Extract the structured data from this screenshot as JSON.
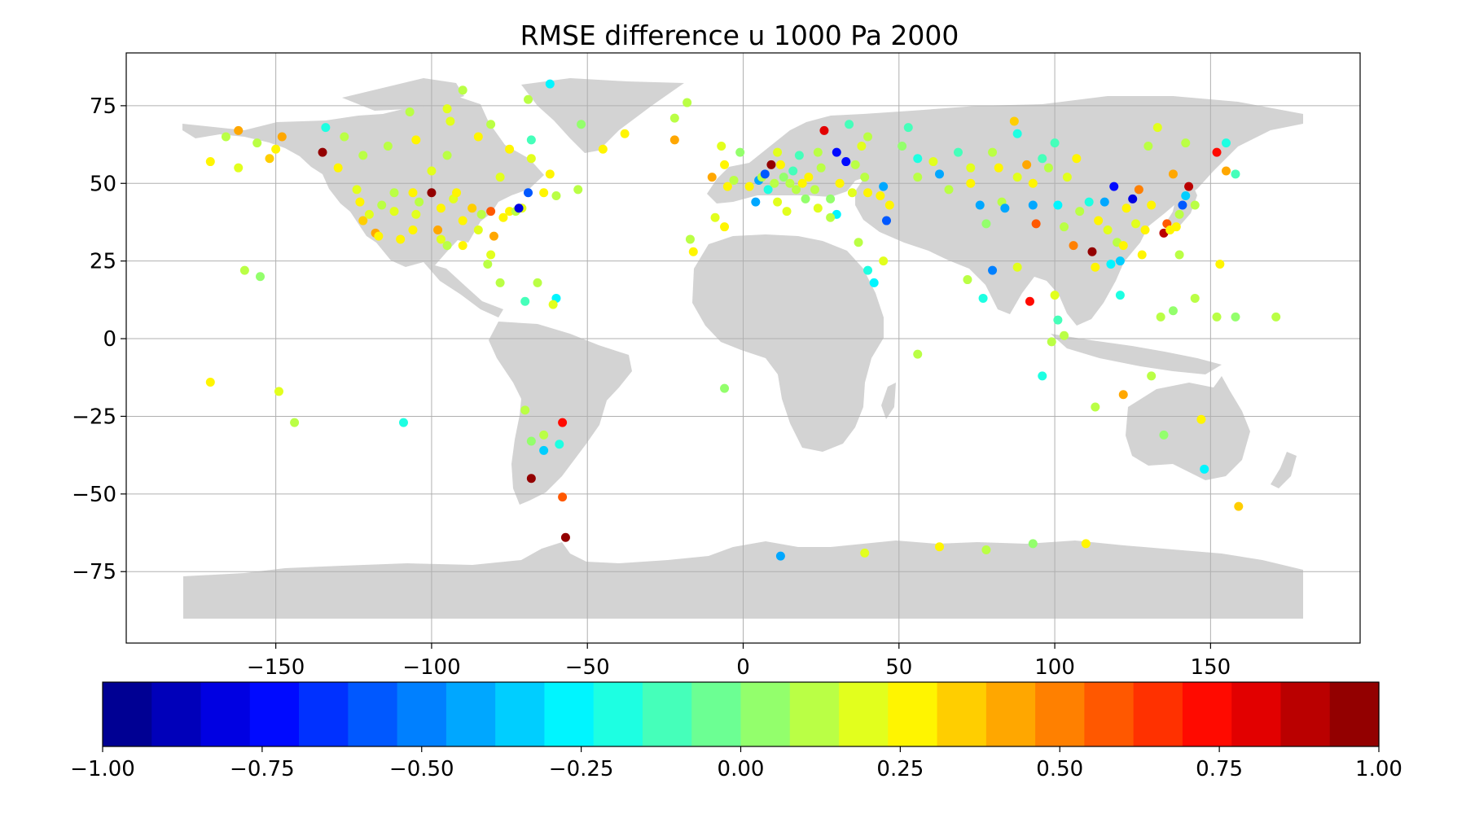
{
  "chart_data": {
    "type": "scatter",
    "title": "RMSE difference u  1000 Pa 2000",
    "xlabel": "",
    "ylabel": "",
    "xlim": [
      -198,
      198
    ],
    "ylim": [
      -98,
      92
    ],
    "xticks": [
      -150,
      -100,
      -50,
      0,
      50,
      100,
      150
    ],
    "yticks": [
      75,
      50,
      25,
      0,
      -25,
      -50,
      -75
    ],
    "xtick_labels": [
      "−150",
      "−100",
      "−50",
      "0",
      "50",
      "100",
      "150"
    ],
    "ytick_labels": [
      "75",
      "50",
      "25",
      "0",
      "−25",
      "−50",
      "−75"
    ],
    "grid": true,
    "background_map": "world land masses (light gray)",
    "colorbar": {
      "orientation": "horizontal",
      "placement": "bottom",
      "colormap": "jet",
      "range": [
        -1.0,
        1.0
      ],
      "ticks": [
        -1.0,
        -0.75,
        -0.5,
        -0.25,
        0.0,
        0.25,
        0.5,
        0.75,
        1.0
      ],
      "tick_labels": [
        "−1.00",
        "−0.75",
        "−0.50",
        "−0.25",
        "0.00",
        "0.25",
        "0.50",
        "0.75",
        "1.00"
      ],
      "bins": 26
    },
    "points": [
      {
        "x": -171,
        "y": 57,
        "v": 0.25
      },
      {
        "x": -166,
        "y": 65,
        "v": 0.1
      },
      {
        "x": -162,
        "y": 67,
        "v": 0.4
      },
      {
        "x": -162,
        "y": 55,
        "v": 0.2
      },
      {
        "x": -156,
        "y": 63,
        "v": 0.15
      },
      {
        "x": -152,
        "y": 58,
        "v": 0.35
      },
      {
        "x": -150,
        "y": 61,
        "v": 0.3
      },
      {
        "x": -148,
        "y": 65,
        "v": 0.45
      },
      {
        "x": -135,
        "y": 60,
        "v": 0.95
      },
      {
        "x": -134,
        "y": 68,
        "v": -0.2
      },
      {
        "x": -130,
        "y": 55,
        "v": 0.3
      },
      {
        "x": -128,
        "y": 65,
        "v": 0.1
      },
      {
        "x": -122,
        "y": 59,
        "v": 0.15
      },
      {
        "x": -124,
        "y": 48,
        "v": 0.2
      },
      {
        "x": -123,
        "y": 44,
        "v": 0.3
      },
      {
        "x": -122,
        "y": 38,
        "v": 0.35
      },
      {
        "x": -118,
        "y": 34,
        "v": 0.4
      },
      {
        "x": -117,
        "y": 33,
        "v": 0.25
      },
      {
        "x": -120,
        "y": 40,
        "v": 0.2
      },
      {
        "x": -116,
        "y": 43,
        "v": 0.15
      },
      {
        "x": -112,
        "y": 41,
        "v": 0.2
      },
      {
        "x": -110,
        "y": 32,
        "v": 0.3
      },
      {
        "x": -106,
        "y": 35,
        "v": 0.25
      },
      {
        "x": -105,
        "y": 40,
        "v": 0.2
      },
      {
        "x": -104,
        "y": 44,
        "v": 0.15
      },
      {
        "x": -112,
        "y": 47,
        "v": 0.1
      },
      {
        "x": -106,
        "y": 47,
        "v": 0.25
      },
      {
        "x": -100,
        "y": 47,
        "v": 0.95
      },
      {
        "x": -97,
        "y": 42,
        "v": 0.3
      },
      {
        "x": -98,
        "y": 35,
        "v": 0.45
      },
      {
        "x": -97,
        "y": 32,
        "v": 0.2
      },
      {
        "x": -95,
        "y": 30,
        "v": 0.1
      },
      {
        "x": -93,
        "y": 45,
        "v": 0.2
      },
      {
        "x": -90,
        "y": 38,
        "v": 0.25
      },
      {
        "x": -90,
        "y": 30,
        "v": 0.3
      },
      {
        "x": -87,
        "y": 42,
        "v": 0.35
      },
      {
        "x": -85,
        "y": 35,
        "v": 0.2
      },
      {
        "x": -84,
        "y": 40,
        "v": 0.15
      },
      {
        "x": -81,
        "y": 41,
        "v": 0.55
      },
      {
        "x": -80,
        "y": 33,
        "v": 0.45
      },
      {
        "x": -81,
        "y": 27,
        "v": 0.2
      },
      {
        "x": -82,
        "y": 24,
        "v": 0.15
      },
      {
        "x": -77,
        "y": 39,
        "v": 0.25
      },
      {
        "x": -75,
        "y": 41,
        "v": 0.3
      },
      {
        "x": -73,
        "y": 41,
        "v": 0.1
      },
      {
        "x": -71,
        "y": 42,
        "v": 0.2
      },
      {
        "x": -69,
        "y": 47,
        "v": -0.55
      },
      {
        "x": -72,
        "y": 42,
        "v": -0.8
      },
      {
        "x": -64,
        "y": 47,
        "v": 0.25
      },
      {
        "x": -60,
        "y": 46,
        "v": 0.15
      },
      {
        "x": -53,
        "y": 48,
        "v": 0.1
      },
      {
        "x": -92,
        "y": 47,
        "v": 0.25
      },
      {
        "x": -100,
        "y": 54,
        "v": 0.2
      },
      {
        "x": -95,
        "y": 59,
        "v": 0.1
      },
      {
        "x": -94,
        "y": 70,
        "v": 0.2
      },
      {
        "x": -85,
        "y": 65,
        "v": 0.3
      },
      {
        "x": -81,
        "y": 69,
        "v": 0.15
      },
      {
        "x": -75,
        "y": 61,
        "v": 0.25
      },
      {
        "x": -78,
        "y": 52,
        "v": 0.2
      },
      {
        "x": -68,
        "y": 64,
        "v": -0.15
      },
      {
        "x": -68,
        "y": 58,
        "v": 0.2
      },
      {
        "x": -62,
        "y": 53,
        "v": 0.25
      },
      {
        "x": -114,
        "y": 62,
        "v": 0.15
      },
      {
        "x": -105,
        "y": 64,
        "v": 0.25
      },
      {
        "x": -107,
        "y": 73,
        "v": 0.1
      },
      {
        "x": -95,
        "y": 74,
        "v": 0.2
      },
      {
        "x": -90,
        "y": 80,
        "v": 0.15
      },
      {
        "x": -62,
        "y": 82,
        "v": -0.3
      },
      {
        "x": -69,
        "y": 77,
        "v": 0.1
      },
      {
        "x": -52,
        "y": 69,
        "v": 0.05
      },
      {
        "x": -45,
        "y": 61,
        "v": 0.25
      },
      {
        "x": -38,
        "y": 66,
        "v": 0.3
      },
      {
        "x": -22,
        "y": 64,
        "v": 0.4
      },
      {
        "x": -22,
        "y": 71,
        "v": 0.1
      },
      {
        "x": -18,
        "y": 76,
        "v": 0.15
      },
      {
        "x": -160,
        "y": 22,
        "v": 0.15
      },
      {
        "x": -155,
        "y": 20,
        "v": 0.05
      },
      {
        "x": -171,
        "y": -14,
        "v": 0.25
      },
      {
        "x": -149,
        "y": -17,
        "v": 0.2
      },
      {
        "x": -144,
        "y": -27,
        "v": 0.1
      },
      {
        "x": -109,
        "y": -27,
        "v": -0.2
      },
      {
        "x": -78,
        "y": 18,
        "v": 0.1
      },
      {
        "x": -66,
        "y": 18,
        "v": 0.15
      },
      {
        "x": -70,
        "y": 12,
        "v": -0.15
      },
      {
        "x": -60,
        "y": 13,
        "v": -0.25
      },
      {
        "x": -61,
        "y": 11,
        "v": 0.2
      },
      {
        "x": -70,
        "y": -23,
        "v": 0.1
      },
      {
        "x": -68,
        "y": -33,
        "v": 0.05
      },
      {
        "x": -64,
        "y": -31,
        "v": 0.1
      },
      {
        "x": -64,
        "y": -36,
        "v": -0.35
      },
      {
        "x": -59,
        "y": -34,
        "v": -0.2
      },
      {
        "x": -58,
        "y": -27,
        "v": 0.75
      },
      {
        "x": -68,
        "y": -45,
        "v": 0.95
      },
      {
        "x": -58,
        "y": -51,
        "v": 0.55
      },
      {
        "x": -57,
        "y": -64,
        "v": 0.95
      },
      {
        "x": -17,
        "y": 32,
        "v": 0.1
      },
      {
        "x": -16,
        "y": 28,
        "v": 0.3
      },
      {
        "x": -10,
        "y": 52,
        "v": 0.45
      },
      {
        "x": -7,
        "y": 62,
        "v": 0.2
      },
      {
        "x": -5,
        "y": 49,
        "v": 0.25
      },
      {
        "x": -6,
        "y": 56,
        "v": 0.3
      },
      {
        "x": -3,
        "y": 51,
        "v": 0.15
      },
      {
        "x": -1,
        "y": 60,
        "v": 0.05
      },
      {
        "x": -9,
        "y": 39,
        "v": 0.2
      },
      {
        "x": -6,
        "y": 36,
        "v": 0.25
      },
      {
        "x": -6,
        "y": -16,
        "v": 0.05
      },
      {
        "x": 2,
        "y": 49,
        "v": 0.3
      },
      {
        "x": 4,
        "y": 44,
        "v": -0.4
      },
      {
        "x": 5,
        "y": 51,
        "v": -0.45
      },
      {
        "x": 6,
        "y": 52,
        "v": 0.15
      },
      {
        "x": 7,
        "y": 53,
        "v": -0.55
      },
      {
        "x": 8,
        "y": 48,
        "v": -0.2
      },
      {
        "x": 9,
        "y": 56,
        "v": 0.95
      },
      {
        "x": 10,
        "y": 50,
        "v": 0.1
      },
      {
        "x": 11,
        "y": 44,
        "v": 0.2
      },
      {
        "x": 12,
        "y": 56,
        "v": 0.3
      },
      {
        "x": 13,
        "y": 52,
        "v": 0.05
      },
      {
        "x": 14,
        "y": 41,
        "v": 0.2
      },
      {
        "x": 15,
        "y": 50,
        "v": 0.15
      },
      {
        "x": 16,
        "y": 54,
        "v": -0.15
      },
      {
        "x": 17,
        "y": 48,
        "v": 0.1
      },
      {
        "x": 19,
        "y": 50,
        "v": 0.25
      },
      {
        "x": 20,
        "y": 45,
        "v": 0.05
      },
      {
        "x": 21,
        "y": 52,
        "v": 0.3
      },
      {
        "x": 23,
        "y": 48,
        "v": 0.1
      },
      {
        "x": 24,
        "y": 42,
        "v": 0.2
      },
      {
        "x": 25,
        "y": 55,
        "v": 0.15
      },
      {
        "x": 26,
        "y": 67,
        "v": 0.8
      },
      {
        "x": 28,
        "y": 45,
        "v": 0.05
      },
      {
        "x": 30,
        "y": 60,
        "v": -0.7
      },
      {
        "x": 31,
        "y": 50,
        "v": 0.25
      },
      {
        "x": 30,
        "y": 40,
        "v": -0.25
      },
      {
        "x": 33,
        "y": 57,
        "v": -0.75
      },
      {
        "x": 35,
        "y": 47,
        "v": 0.2
      },
      {
        "x": 36,
        "y": 56,
        "v": 0.15
      },
      {
        "x": 38,
        "y": 62,
        "v": 0.2
      },
      {
        "x": 39,
        "y": 52,
        "v": 0.1
      },
      {
        "x": 40,
        "y": 47,
        "v": 0.3
      },
      {
        "x": 44,
        "y": 46,
        "v": 0.25
      },
      {
        "x": 45,
        "y": 49,
        "v": -0.45
      },
      {
        "x": 46,
        "y": 38,
        "v": -0.6
      },
      {
        "x": 47,
        "y": 43,
        "v": 0.3
      },
      {
        "x": 40,
        "y": 65,
        "v": 0.1
      },
      {
        "x": 34,
        "y": 69,
        "v": -0.15
      },
      {
        "x": 51,
        "y": 62,
        "v": 0.05
      },
      {
        "x": 53,
        "y": 68,
        "v": -0.1
      },
      {
        "x": 56,
        "y": 58,
        "v": -0.2
      },
      {
        "x": 56,
        "y": 52,
        "v": 0.15
      },
      {
        "x": 61,
        "y": 57,
        "v": 0.2
      },
      {
        "x": 63,
        "y": 53,
        "v": -0.45
      },
      {
        "x": 66,
        "y": 48,
        "v": 0.1
      },
      {
        "x": 69,
        "y": 60,
        "v": -0.15
      },
      {
        "x": 73,
        "y": 55,
        "v": 0.2
      },
      {
        "x": 73,
        "y": 50,
        "v": 0.25
      },
      {
        "x": 76,
        "y": 43,
        "v": -0.45
      },
      {
        "x": 78,
        "y": 37,
        "v": 0.05
      },
      {
        "x": 80,
        "y": 60,
        "v": 0.15
      },
      {
        "x": 82,
        "y": 55,
        "v": 0.25
      },
      {
        "x": 83,
        "y": 44,
        "v": 0.1
      },
      {
        "x": 84,
        "y": 42,
        "v": -0.4
      },
      {
        "x": 87,
        "y": 70,
        "v": 0.35
      },
      {
        "x": 88,
        "y": 66,
        "v": -0.2
      },
      {
        "x": 88,
        "y": 52,
        "v": 0.2
      },
      {
        "x": 91,
        "y": 56,
        "v": 0.45
      },
      {
        "x": 93,
        "y": 50,
        "v": 0.3
      },
      {
        "x": 93,
        "y": 43,
        "v": -0.4
      },
      {
        "x": 94,
        "y": 37,
        "v": 0.6
      },
      {
        "x": 96,
        "y": 58,
        "v": -0.1
      },
      {
        "x": 98,
        "y": 55,
        "v": 0.15
      },
      {
        "x": 100,
        "y": 63,
        "v": -0.15
      },
      {
        "x": 101,
        "y": 43,
        "v": -0.25
      },
      {
        "x": 103,
        "y": 36,
        "v": 0.1
      },
      {
        "x": 104,
        "y": 52,
        "v": 0.2
      },
      {
        "x": 106,
        "y": 30,
        "v": 0.5
      },
      {
        "x": 107,
        "y": 58,
        "v": 0.25
      },
      {
        "x": 108,
        "y": 41,
        "v": 0.15
      },
      {
        "x": 111,
        "y": 44,
        "v": -0.2
      },
      {
        "x": 112,
        "y": 28,
        "v": 0.95
      },
      {
        "x": 113,
        "y": 23,
        "v": 0.25
      },
      {
        "x": 114,
        "y": 38,
        "v": 0.3
      },
      {
        "x": 116,
        "y": 44,
        "v": -0.45
      },
      {
        "x": 117,
        "y": 35,
        "v": 0.2
      },
      {
        "x": 118,
        "y": 24,
        "v": -0.3
      },
      {
        "x": 119,
        "y": 49,
        "v": -0.75
      },
      {
        "x": 120,
        "y": 31,
        "v": 0.15
      },
      {
        "x": 121,
        "y": 25,
        "v": -0.35
      },
      {
        "x": 122,
        "y": 30,
        "v": 0.3
      },
      {
        "x": 123,
        "y": 42,
        "v": 0.25
      },
      {
        "x": 125,
        "y": 45,
        "v": -0.8
      },
      {
        "x": 126,
        "y": 37,
        "v": 0.2
      },
      {
        "x": 127,
        "y": 48,
        "v": 0.5
      },
      {
        "x": 128,
        "y": 27,
        "v": 0.3
      },
      {
        "x": 129,
        "y": 35,
        "v": 0.25
      },
      {
        "x": 130,
        "y": 62,
        "v": 0.15
      },
      {
        "x": 131,
        "y": 43,
        "v": 0.3
      },
      {
        "x": 133,
        "y": 68,
        "v": 0.2
      },
      {
        "x": 135,
        "y": 34,
        "v": 0.9
      },
      {
        "x": 136,
        "y": 37,
        "v": 0.55
      },
      {
        "x": 137,
        "y": 35,
        "v": 0.3
      },
      {
        "x": 138,
        "y": 53,
        "v": 0.4
      },
      {
        "x": 139,
        "y": 36,
        "v": 0.25
      },
      {
        "x": 140,
        "y": 40,
        "v": 0.15
      },
      {
        "x": 141,
        "y": 43,
        "v": -0.6
      },
      {
        "x": 142,
        "y": 46,
        "v": -0.35
      },
      {
        "x": 143,
        "y": 49,
        "v": 0.85
      },
      {
        "x": 145,
        "y": 43,
        "v": 0.1
      },
      {
        "x": 142,
        "y": 63,
        "v": 0.1
      },
      {
        "x": 152,
        "y": 60,
        "v": 0.7
      },
      {
        "x": 155,
        "y": 54,
        "v": 0.45
      },
      {
        "x": 158,
        "y": 53,
        "v": -0.15
      },
      {
        "x": 155,
        "y": 63,
        "v": -0.2
      },
      {
        "x": 153,
        "y": 24,
        "v": 0.25
      },
      {
        "x": 140,
        "y": 27,
        "v": 0.15
      },
      {
        "x": 134,
        "y": 7,
        "v": 0.1
      },
      {
        "x": 138,
        "y": 9,
        "v": 0.05
      },
      {
        "x": 145,
        "y": 13,
        "v": 0.1
      },
      {
        "x": 152,
        "y": 7,
        "v": 0.15
      },
      {
        "x": 158,
        "y": 7,
        "v": 0.05
      },
      {
        "x": 171,
        "y": 7,
        "v": 0.1
      },
      {
        "x": 121,
        "y": 14,
        "v": -0.2
      },
      {
        "x": 103,
        "y": 1,
        "v": 0.15
      },
      {
        "x": 101,
        "y": 6,
        "v": -0.15
      },
      {
        "x": 100,
        "y": 14,
        "v": 0.2
      },
      {
        "x": 92,
        "y": 12,
        "v": 0.7
      },
      {
        "x": 77,
        "y": 13,
        "v": -0.2
      },
      {
        "x": 80,
        "y": 22,
        "v": -0.5
      },
      {
        "x": 88,
        "y": 23,
        "v": 0.2
      },
      {
        "x": 72,
        "y": 19,
        "v": 0.15
      },
      {
        "x": 56,
        "y": -5,
        "v": 0.1
      },
      {
        "x": 40,
        "y": 22,
        "v": -0.2
      },
      {
        "x": 42,
        "y": 18,
        "v": -0.3
      },
      {
        "x": 45,
        "y": 25,
        "v": 0.2
      },
      {
        "x": 99,
        "y": -1,
        "v": 0.15
      },
      {
        "x": 96,
        "y": -12,
        "v": -0.2
      },
      {
        "x": 113,
        "y": -22,
        "v": 0.1
      },
      {
        "x": 122,
        "y": -18,
        "v": 0.45
      },
      {
        "x": 131,
        "y": -12,
        "v": 0.15
      },
      {
        "x": 135,
        "y": -31,
        "v": 0.05
      },
      {
        "x": 147,
        "y": -26,
        "v": 0.3
      },
      {
        "x": 148,
        "y": -42,
        "v": -0.3
      },
      {
        "x": 159,
        "y": -54,
        "v": 0.35
      },
      {
        "x": 12,
        "y": -70,
        "v": -0.4
      },
      {
        "x": 39,
        "y": -69,
        "v": 0.2
      },
      {
        "x": 63,
        "y": -67,
        "v": 0.3
      },
      {
        "x": 78,
        "y": -68,
        "v": 0.15
      },
      {
        "x": 93,
        "y": -66,
        "v": 0.05
      },
      {
        "x": 110,
        "y": -66,
        "v": 0.25
      },
      {
        "x": 24,
        "y": 60,
        "v": 0.1
      },
      {
        "x": 18,
        "y": 59,
        "v": -0.15
      },
      {
        "x": 11,
        "y": 60,
        "v": 0.2
      },
      {
        "x": 28,
        "y": 39,
        "v": 0.15
      },
      {
        "x": 37,
        "y": 31,
        "v": 0.1
      }
    ]
  }
}
